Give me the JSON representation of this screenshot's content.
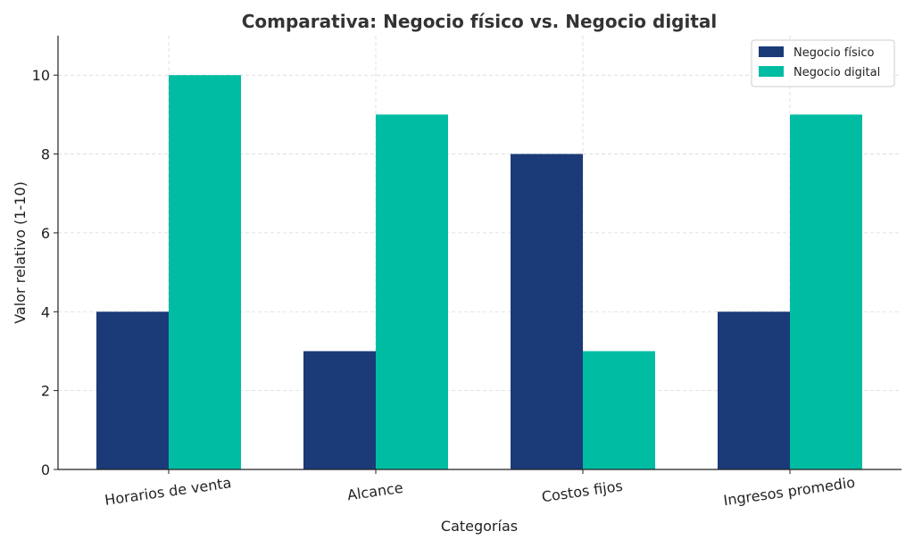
{
  "chart_data": {
    "type": "bar",
    "title": "Comparativa: Negocio físico vs. Negocio digital",
    "xlabel": "Categorías",
    "ylabel": "Valor relativo (1-10)",
    "categories": [
      "Horarios de venta",
      "Alcance",
      "Costos fijos",
      "Ingresos promedio"
    ],
    "series": [
      {
        "name": "Negocio físico",
        "color": "#1b3a78",
        "values": [
          4,
          3,
          8,
          4
        ]
      },
      {
        "name": "Negocio digital",
        "color": "#00bca3",
        "values": [
          10,
          9,
          3,
          9
        ]
      }
    ],
    "ylim": [
      0,
      11
    ],
    "yticks": [
      0,
      2,
      4,
      6,
      8,
      10
    ],
    "grid": true,
    "legend_position": "top-right"
  }
}
